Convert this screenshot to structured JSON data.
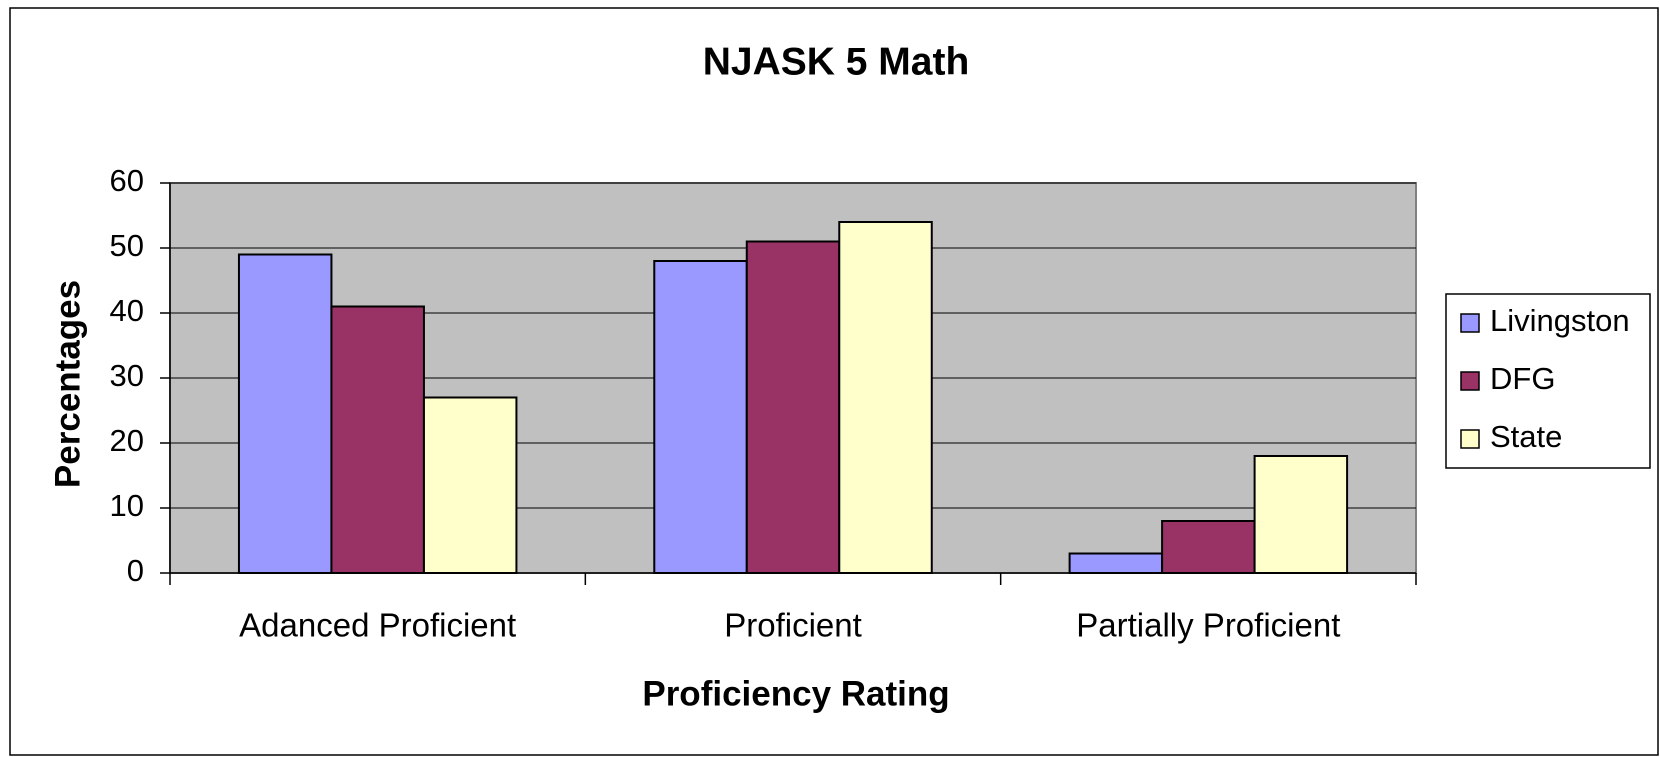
{
  "chart_data": {
    "type": "bar",
    "title": "NJASK 5 Math",
    "x_label": "Proficiency Rating",
    "y_label": "Percentages",
    "categories": [
      "Adanced Proficient",
      "Proficient",
      "Partially Proficient"
    ],
    "series": [
      {
        "name": "Livingston",
        "color": "#9999ff",
        "values": [
          49,
          48,
          3
        ]
      },
      {
        "name": "DFG",
        "color": "#993366",
        "values": [
          41,
          51,
          8
        ]
      },
      {
        "name": "State",
        "color": "#ffffcc",
        "values": [
          27,
          54,
          18
        ]
      }
    ],
    "ylim": [
      0,
      60
    ],
    "yticks": [
      0,
      10,
      20,
      30,
      40,
      50,
      60
    ],
    "grid": true,
    "legend": "right"
  }
}
